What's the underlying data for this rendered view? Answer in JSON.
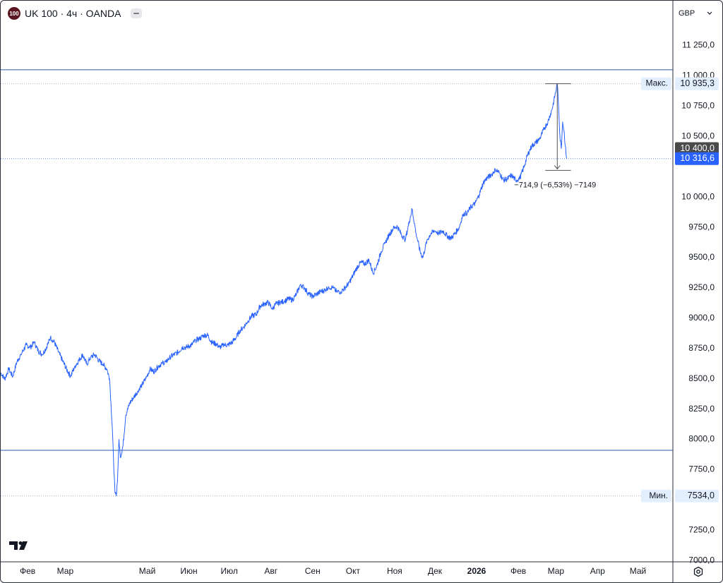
{
  "header": {
    "logo_text": "100",
    "title": "UK 100 · 4ч · OANDA"
  },
  "currency": {
    "label": "GBP",
    "chevron_icon": "chevron-down-icon"
  },
  "colors": {
    "line": "#2962ff",
    "axis_text": "#131722",
    "hline": "#2a5ba8",
    "dotted": "#b2b5be",
    "label_bg": "#e3effd",
    "current_price_bg": "#2962ff",
    "last_value_bg": "#4a4a4a"
  },
  "icons": {
    "collapse": "collapse-icon",
    "tradingview_logo": "tradingview-logo",
    "settings": "settings-icon"
  },
  "chart_data": {
    "type": "line",
    "y_ticks": [
      "11 250,0",
      "11 000,0",
      "10 750,0",
      "10 500,0",
      "10 000,0",
      "9750,0",
      "9500,0",
      "9250,0",
      "9000,0",
      "8750,0",
      "8500,0",
      "8250,0",
      "8000,0",
      "7750,0",
      "7250,0",
      "7000,0"
    ],
    "y_tick_values": [
      11250,
      11000,
      10750,
      10500,
      10000,
      9750,
      9500,
      9250,
      9000,
      8750,
      8500,
      8250,
      8000,
      7750,
      7250,
      7000
    ],
    "ylim": [
      6990,
      11620
    ],
    "x_ticks": [
      "Фев",
      "Мар",
      "Май",
      "Июн",
      "Июл",
      "Авг",
      "Сен",
      "Окт",
      "Ноя",
      "Дек",
      "2026",
      "Фев",
      "Мар",
      "Апр",
      "Май"
    ],
    "x_tick_dates": [
      "2025-02-01",
      "2025-03-01",
      "2025-05-01",
      "2025-06-01",
      "2025-07-01",
      "2025-08-01",
      "2025-09-01",
      "2025-10-01",
      "2025-11-01",
      "2025-12-01",
      "2026-01-01",
      "2026-02-01",
      "2026-03-01",
      "2026-04-01",
      "2026-05-01"
    ],
    "xlim": [
      "2025-01-12",
      "2026-05-27"
    ],
    "series": [
      {
        "points": [
          [
            "2025-01-12",
            8550
          ],
          [
            "2025-01-15",
            8500
          ],
          [
            "2025-01-18",
            8580
          ],
          [
            "2025-01-21",
            8520
          ],
          [
            "2025-01-24",
            8640
          ],
          [
            "2025-01-27",
            8700
          ],
          [
            "2025-01-31",
            8780
          ],
          [
            "2025-02-03",
            8760
          ],
          [
            "2025-02-06",
            8800
          ],
          [
            "2025-02-09",
            8730
          ],
          [
            "2025-02-12",
            8700
          ],
          [
            "2025-02-15",
            8760
          ],
          [
            "2025-02-18",
            8840
          ],
          [
            "2025-02-21",
            8800
          ],
          [
            "2025-02-24",
            8720
          ],
          [
            "2025-02-27",
            8650
          ],
          [
            "2025-03-02",
            8580
          ],
          [
            "2025-03-05",
            8520
          ],
          [
            "2025-03-08",
            8600
          ],
          [
            "2025-03-11",
            8650
          ],
          [
            "2025-03-14",
            8700
          ],
          [
            "2025-03-17",
            8620
          ],
          [
            "2025-03-20",
            8680
          ],
          [
            "2025-03-23",
            8700
          ],
          [
            "2025-03-26",
            8650
          ],
          [
            "2025-03-29",
            8620
          ],
          [
            "2025-04-01",
            8580
          ],
          [
            "2025-04-03",
            8500
          ],
          [
            "2025-04-05",
            8100
          ],
          [
            "2025-04-06",
            7800
          ],
          [
            "2025-04-07",
            7560
          ],
          [
            "2025-04-08",
            7534
          ],
          [
            "2025-04-09",
            7700
          ],
          [
            "2025-04-10",
            8000
          ],
          [
            "2025-04-11",
            7850
          ],
          [
            "2025-04-13",
            7950
          ],
          [
            "2025-04-15",
            8200
          ],
          [
            "2025-04-18",
            8300
          ],
          [
            "2025-04-21",
            8350
          ],
          [
            "2025-04-24",
            8400
          ],
          [
            "2025-04-27",
            8450
          ],
          [
            "2025-04-30",
            8500
          ],
          [
            "2025-05-03",
            8580
          ],
          [
            "2025-05-06",
            8560
          ],
          [
            "2025-05-09",
            8600
          ],
          [
            "2025-05-12",
            8630
          ],
          [
            "2025-05-15",
            8640
          ],
          [
            "2025-05-18",
            8680
          ],
          [
            "2025-05-21",
            8700
          ],
          [
            "2025-05-24",
            8720
          ],
          [
            "2025-05-27",
            8760
          ],
          [
            "2025-05-30",
            8760
          ],
          [
            "2025-06-03",
            8780
          ],
          [
            "2025-06-06",
            8820
          ],
          [
            "2025-06-09",
            8830
          ],
          [
            "2025-06-12",
            8860
          ],
          [
            "2025-06-15",
            8860
          ],
          [
            "2025-06-18",
            8800
          ],
          [
            "2025-06-21",
            8790
          ],
          [
            "2025-06-24",
            8760
          ],
          [
            "2025-06-27",
            8780
          ],
          [
            "2025-06-30",
            8780
          ],
          [
            "2025-07-03",
            8800
          ],
          [
            "2025-07-06",
            8840
          ],
          [
            "2025-07-09",
            8900
          ],
          [
            "2025-07-12",
            8930
          ],
          [
            "2025-07-15",
            8980
          ],
          [
            "2025-07-18",
            9020
          ],
          [
            "2025-07-21",
            9030
          ],
          [
            "2025-07-24",
            9100
          ],
          [
            "2025-07-27",
            9120
          ],
          [
            "2025-07-30",
            9130
          ],
          [
            "2025-08-02",
            9080
          ],
          [
            "2025-08-05",
            9120
          ],
          [
            "2025-08-08",
            9130
          ],
          [
            "2025-08-11",
            9140
          ],
          [
            "2025-08-14",
            9160
          ],
          [
            "2025-08-17",
            9150
          ],
          [
            "2025-08-20",
            9200
          ],
          [
            "2025-08-23",
            9280
          ],
          [
            "2025-08-26",
            9250
          ],
          [
            "2025-08-29",
            9200
          ],
          [
            "2025-09-01",
            9180
          ],
          [
            "2025-09-04",
            9200
          ],
          [
            "2025-09-07",
            9220
          ],
          [
            "2025-09-10",
            9230
          ],
          [
            "2025-09-13",
            9260
          ],
          [
            "2025-09-16",
            9250
          ],
          [
            "2025-09-19",
            9220
          ],
          [
            "2025-09-22",
            9220
          ],
          [
            "2025-09-25",
            9250
          ],
          [
            "2025-09-28",
            9290
          ],
          [
            "2025-10-01",
            9350
          ],
          [
            "2025-10-04",
            9420
          ],
          [
            "2025-10-07",
            9460
          ],
          [
            "2025-10-10",
            9450
          ],
          [
            "2025-10-13",
            9480
          ],
          [
            "2025-10-16",
            9370
          ],
          [
            "2025-10-19",
            9440
          ],
          [
            "2025-10-22",
            9550
          ],
          [
            "2025-10-25",
            9620
          ],
          [
            "2025-10-28",
            9690
          ],
          [
            "2025-10-31",
            9740
          ],
          [
            "2025-11-03",
            9760
          ],
          [
            "2025-11-06",
            9690
          ],
          [
            "2025-11-09",
            9650
          ],
          [
            "2025-11-12",
            9800
          ],
          [
            "2025-11-14",
            9900
          ],
          [
            "2025-11-17",
            9700
          ],
          [
            "2025-11-20",
            9550
          ],
          [
            "2025-11-22",
            9500
          ],
          [
            "2025-11-25",
            9640
          ],
          [
            "2025-11-28",
            9700
          ],
          [
            "2025-12-01",
            9720
          ],
          [
            "2025-12-04",
            9700
          ],
          [
            "2025-12-07",
            9720
          ],
          [
            "2025-12-10",
            9680
          ],
          [
            "2025-12-13",
            9660
          ],
          [
            "2025-12-16",
            9700
          ],
          [
            "2025-12-19",
            9750
          ],
          [
            "2025-12-22",
            9860
          ],
          [
            "2025-12-25",
            9870
          ],
          [
            "2025-12-28",
            9920
          ],
          [
            "2025-12-31",
            9950
          ],
          [
            "2026-01-03",
            10020
          ],
          [
            "2026-01-06",
            10120
          ],
          [
            "2026-01-09",
            10160
          ],
          [
            "2026-01-12",
            10180
          ],
          [
            "2026-01-15",
            10230
          ],
          [
            "2026-01-18",
            10200
          ],
          [
            "2026-01-21",
            10140
          ],
          [
            "2026-01-24",
            10150
          ],
          [
            "2026-01-27",
            10180
          ],
          [
            "2026-01-30",
            10140
          ],
          [
            "2026-02-02",
            10150
          ],
          [
            "2026-02-05",
            10240
          ],
          [
            "2026-02-08",
            10350
          ],
          [
            "2026-02-11",
            10420
          ],
          [
            "2026-02-14",
            10450
          ],
          [
            "2026-02-17",
            10480
          ],
          [
            "2026-02-20",
            10560
          ],
          [
            "2026-02-23",
            10620
          ],
          [
            "2026-02-26",
            10720
          ],
          [
            "2026-02-28",
            10820
          ],
          [
            "2026-03-02",
            10935.3
          ],
          [
            "2026-03-03",
            10750
          ],
          [
            "2026-03-04",
            10500
          ],
          [
            "2026-03-05",
            10400
          ],
          [
            "2026-03-06",
            10620
          ],
          [
            "2026-03-07",
            10550
          ],
          [
            "2026-03-08",
            10420
          ],
          [
            "2026-03-09",
            10316.6
          ]
        ]
      }
    ],
    "horizontal_lines": [
      11050,
      7910
    ],
    "max": {
      "label": "Макс.",
      "value": 10935.3,
      "value_label": "10 935,3",
      "date": "2026-03-02"
    },
    "min": {
      "label": "Мин.",
      "value": 7534.0,
      "value_label": "7534,0"
    },
    "last_value": {
      "value": 10400.0,
      "value_label": "10 400,0"
    },
    "current_price": {
      "value": 10316.6,
      "value_label": "10 316,6"
    },
    "measurement": {
      "from": {
        "date": "2026-03-02",
        "value": 10935.3
      },
      "to": {
        "date": "2026-03-09",
        "value": 10220
      },
      "label": "−714,9 (−6,53%) −7149"
    }
  }
}
